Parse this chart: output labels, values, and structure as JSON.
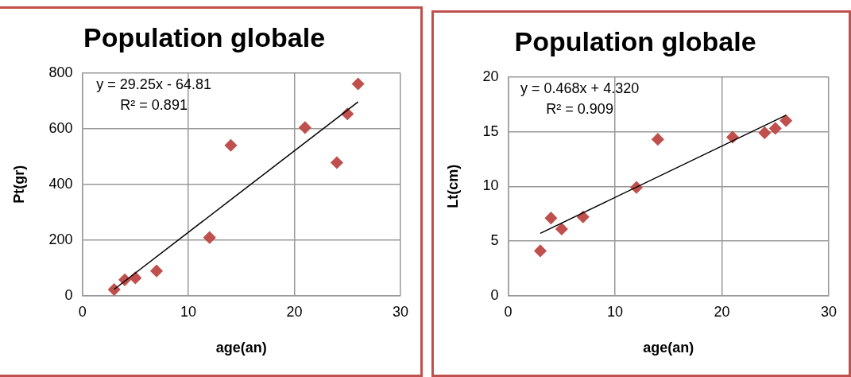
{
  "chart_data": [
    {
      "type": "scatter",
      "title": "Population globale",
      "xlabel": "age(an)",
      "ylabel": "Pt(gr)",
      "xlim": [
        0,
        30
      ],
      "xticks": [
        0,
        10,
        20,
        30
      ],
      "ylim": [
        0,
        800
      ],
      "yticks": [
        0,
        200,
        400,
        600,
        800
      ],
      "grid": true,
      "marker": "diamond",
      "annotations": [
        "y = 29.25x - 64.81",
        "R² = 0.891"
      ],
      "series": [
        {
          "color": "#c0504d",
          "x": [
            3,
            4,
            5,
            7,
            12,
            14,
            21,
            24,
            25,
            26
          ],
          "values": [
            22,
            57,
            64,
            89,
            209,
            540,
            604,
            478,
            653,
            761
          ]
        },
        {
          "type": "line",
          "color": "#000000",
          "marker": "none",
          "x": [
            3,
            26
          ],
          "values": [
            23,
            696
          ]
        }
      ]
    },
    {
      "type": "scatter",
      "title": "Population globale",
      "xlabel": "age(an)",
      "ylabel": "Lt(cm)",
      "xlim": [
        0,
        30
      ],
      "xticks": [
        0,
        10,
        20,
        30
      ],
      "ylim": [
        0,
        20
      ],
      "yticks": [
        0,
        5,
        10,
        15,
        20
      ],
      "grid": true,
      "marker": "diamond",
      "annotations": [
        "y = 0.468x + 4.320",
        "R² = 0.909"
      ],
      "series": [
        {
          "color": "#c0504d",
          "x": [
            3,
            4,
            5,
            7,
            12,
            14,
            21,
            24,
            25,
            26
          ],
          "values": [
            4.1,
            7.1,
            6.1,
            7.2,
            9.9,
            14.3,
            14.5,
            14.9,
            15.3,
            16.0
          ]
        },
        {
          "type": "line",
          "color": "#000000",
          "marker": "none",
          "x": [
            3,
            26
          ],
          "values": [
            5.7,
            16.5
          ]
        }
      ]
    }
  ]
}
